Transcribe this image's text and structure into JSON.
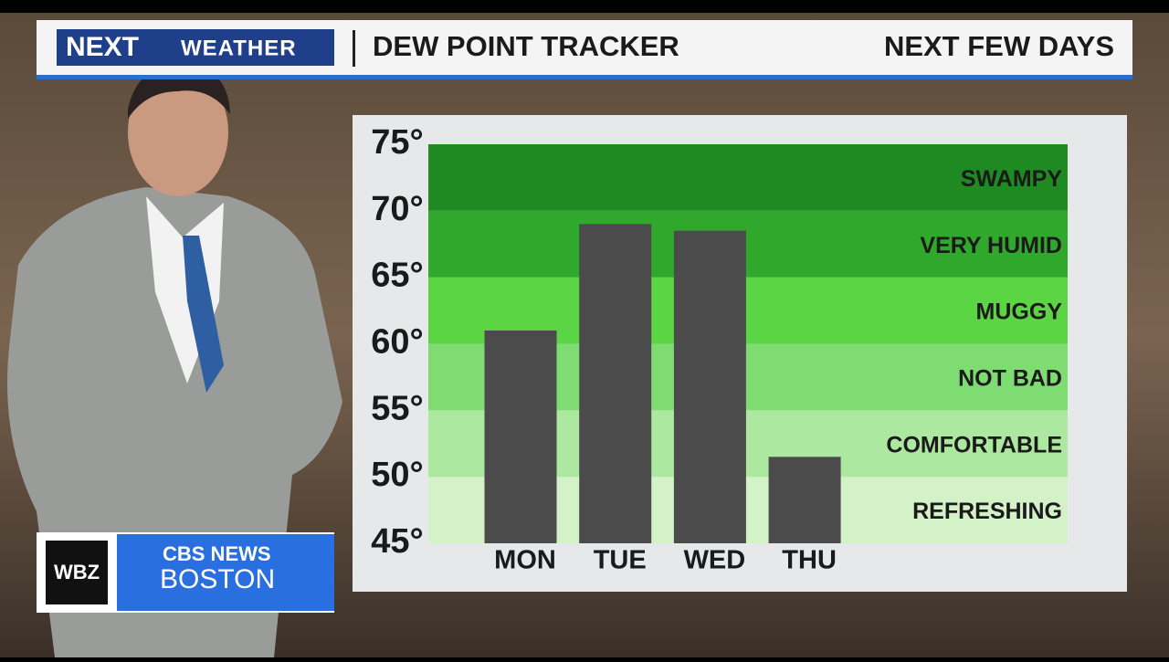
{
  "header": {
    "brand": "NEXT",
    "section": "WEATHER",
    "title": "DEW POINT TRACKER",
    "subtitle": "NEXT FEW DAYS"
  },
  "station": {
    "call": "WBZ",
    "network": "CBS NEWS",
    "city": "BOSTON"
  },
  "chart_data": {
    "type": "bar",
    "categories": [
      "MON",
      "TUE",
      "WED",
      "THU"
    ],
    "values": [
      61,
      69,
      68.5,
      51.5
    ],
    "color": "#4b4b4b",
    "ylim": [
      45,
      75
    ],
    "yticks": [
      {
        "value": 45,
        "label": "45°"
      },
      {
        "value": 50,
        "label": "50°"
      },
      {
        "value": 55,
        "label": "55°"
      },
      {
        "value": 60,
        "label": "60°"
      },
      {
        "value": 65,
        "label": "65°"
      },
      {
        "value": 70,
        "label": "70°"
      },
      {
        "value": 75,
        "label": "75°"
      }
    ],
    "bands": [
      {
        "label": "REFRESHING",
        "from": 45,
        "to": 50,
        "color": "#d3f2c8"
      },
      {
        "label": "COMFORTABLE",
        "from": 50,
        "to": 55,
        "color": "#ade8a0"
      },
      {
        "label": "NOT BAD",
        "from": 55,
        "to": 60,
        "color": "#7fdc72"
      },
      {
        "label": "MUGGY",
        "from": 60,
        "to": 65,
        "color": "#5cd544"
      },
      {
        "label": "VERY HUMID",
        "from": 65,
        "to": 70,
        "color": "#2fa82c"
      },
      {
        "label": "SWAMPY",
        "from": 70,
        "to": 75,
        "color": "#1f8a22"
      }
    ]
  }
}
